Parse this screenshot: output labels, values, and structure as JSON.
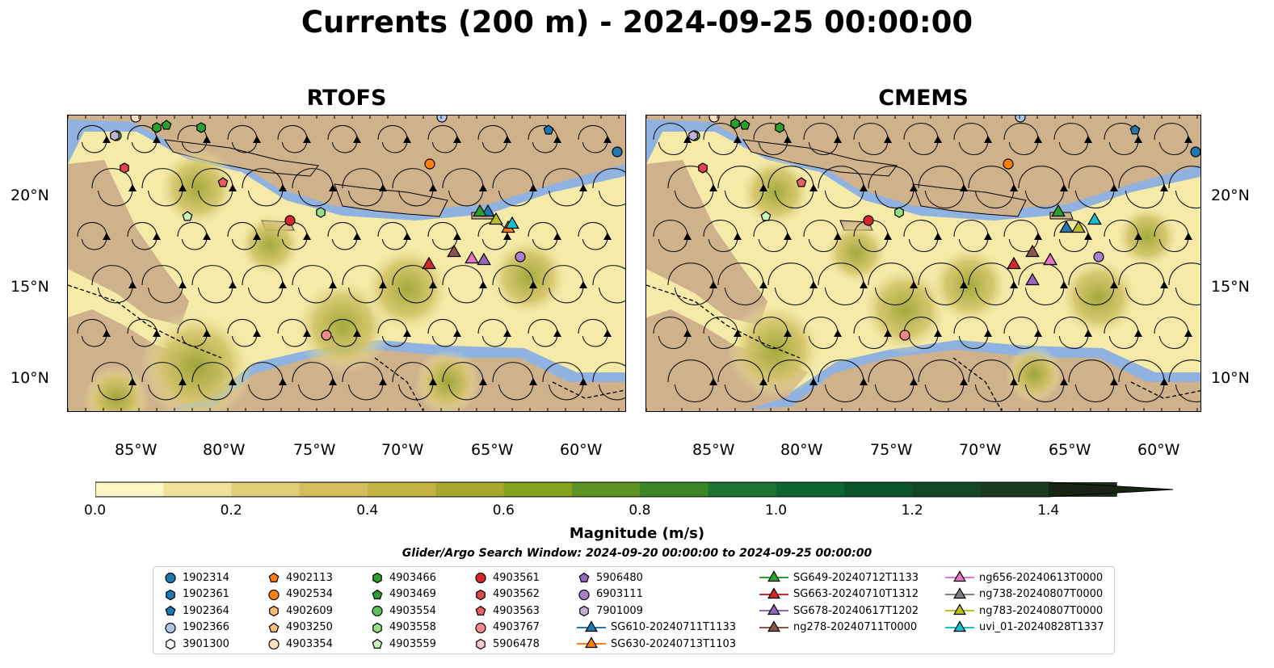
{
  "title": "Currents (200 m) - 2024-09-25 00:00:00",
  "maps": [
    {
      "title": "RTOFS"
    },
    {
      "title": "CMEMS"
    }
  ],
  "lon_ticks": [
    "85°W",
    "80°W",
    "75°W",
    "70°W",
    "65°W",
    "60°W"
  ],
  "lat_ticks": [
    "20°N",
    "15°N",
    "10°N"
  ],
  "colorbar": {
    "label": "Magnitude (m/s)",
    "ticks": [
      "0.0",
      "0.2",
      "0.4",
      "0.6",
      "0.8",
      "1.0",
      "1.2",
      "1.4"
    ],
    "colors": [
      "#fbf6c3",
      "#f0e29a",
      "#e2cd78",
      "#d4bd5a",
      "#c3b343",
      "#a8a82c",
      "#84a11c",
      "#5d9322",
      "#3b8529",
      "#1d732f",
      "#0f6530",
      "#0c552b",
      "#144728",
      "#1a3a20",
      "#1c2d18",
      "#1a2414"
    ]
  },
  "search_window": "Glider/Argo Search Window: 2024-09-20 00:00:00 to 2024-09-25 00:00:00",
  "legend": [
    {
      "label": "1902314",
      "marker": "circle",
      "color": "#1f77b4"
    },
    {
      "label": "1902361",
      "marker": "hexagon",
      "color": "#1f77b4"
    },
    {
      "label": "1902364",
      "marker": "pentagon",
      "color": "#1f77b4"
    },
    {
      "label": "1902366",
      "marker": "circle",
      "color": "#aec7e8"
    },
    {
      "label": "3901300",
      "marker": "hexagon",
      "color": "#ffffff"
    },
    {
      "label": "4902113",
      "marker": "pentagon",
      "color": "#ff7f0e"
    },
    {
      "label": "4902534",
      "marker": "circle",
      "color": "#ff7f0e"
    },
    {
      "label": "4902609",
      "marker": "hexagon",
      "color": "#ffbb78"
    },
    {
      "label": "4903250",
      "marker": "pentagon",
      "color": "#ffbb78"
    },
    {
      "label": "4903354",
      "marker": "circle",
      "color": "#ffe0c0"
    },
    {
      "label": "4903466",
      "marker": "hexagon",
      "color": "#2ca02c"
    },
    {
      "label": "4903469",
      "marker": "pentagon",
      "color": "#2ca02c"
    },
    {
      "label": "4903554",
      "marker": "circle",
      "color": "#5cc05c"
    },
    {
      "label": "4903558",
      "marker": "hexagon",
      "color": "#98df8a"
    },
    {
      "label": "4903559",
      "marker": "pentagon",
      "color": "#c8f5b8"
    },
    {
      "label": "4903561",
      "marker": "circle",
      "color": "#d62728"
    },
    {
      "label": "4903562",
      "marker": "hexagon",
      "color": "#e04646"
    },
    {
      "label": "4903563",
      "marker": "pentagon",
      "color": "#e86060"
    },
    {
      "label": "4903767",
      "marker": "circle",
      "color": "#f08a8a"
    },
    {
      "label": "5906478",
      "marker": "hexagon",
      "color": "#fcc8c8"
    },
    {
      "label": "5906480",
      "marker": "pentagon",
      "color": "#9467bd"
    },
    {
      "label": "6903111",
      "marker": "circle",
      "color": "#a77fcd"
    },
    {
      "label": "7901009",
      "marker": "hexagon",
      "color": "#c5b0d5"
    },
    {
      "label": "SG610-20240711T1133",
      "marker": "triangle",
      "color": "#1f77b4"
    },
    {
      "label": "SG630-20240713T1103",
      "marker": "triangle",
      "color": "#ff7f0e"
    },
    {
      "label": "SG649-20240712T1133",
      "marker": "triangle",
      "color": "#2ca02c"
    },
    {
      "label": "SG663-20240710T1312",
      "marker": "triangle",
      "color": "#d62728"
    },
    {
      "label": "SG678-20240617T1202",
      "marker": "triangle",
      "color": "#9467bd"
    },
    {
      "label": "ng278-20240711T0000",
      "marker": "triangle",
      "color": "#8c564b"
    },
    {
      "label": "ng656-20240613T0000",
      "marker": "triangle",
      "color": "#e377c2"
    },
    {
      "label": "ng738-20240807T0000",
      "marker": "triangle",
      "color": "#7f7f7f"
    },
    {
      "label": "ng783-20240807T0000",
      "marker": "triangle",
      "color": "#bcbd22"
    },
    {
      "label": "uvi_01-20240828T1337",
      "marker": "triangle",
      "color": "#17becf"
    }
  ]
}
